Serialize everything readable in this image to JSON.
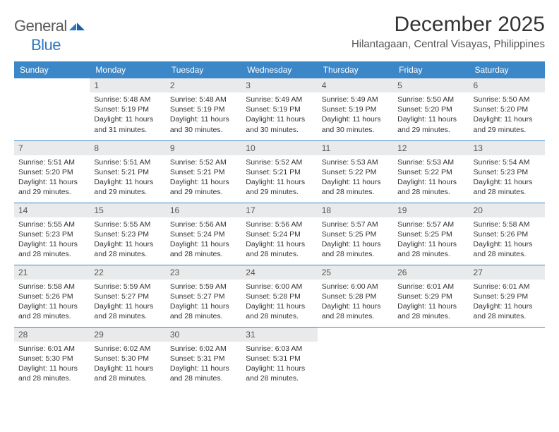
{
  "logo": {
    "general": "General",
    "blue": "Blue"
  },
  "header": {
    "month_title": "December 2025",
    "location": "Hilantagaan, Central Visayas, Philippines"
  },
  "colors": {
    "header_bg": "#3b87c8",
    "header_text": "#ffffff",
    "daynum_bg": "#e9eaeb",
    "row_border": "#3b87c8",
    "logo_gray": "#5a5a5a",
    "logo_blue": "#2f78c3"
  },
  "weekdays": [
    "Sunday",
    "Monday",
    "Tuesday",
    "Wednesday",
    "Thursday",
    "Friday",
    "Saturday"
  ],
  "weeks": [
    [
      {
        "n": "",
        "sr": "",
        "ss": "",
        "dl": ""
      },
      {
        "n": "1",
        "sr": "Sunrise: 5:48 AM",
        "ss": "Sunset: 5:19 PM",
        "dl": "Daylight: 11 hours and 31 minutes."
      },
      {
        "n": "2",
        "sr": "Sunrise: 5:48 AM",
        "ss": "Sunset: 5:19 PM",
        "dl": "Daylight: 11 hours and 30 minutes."
      },
      {
        "n": "3",
        "sr": "Sunrise: 5:49 AM",
        "ss": "Sunset: 5:19 PM",
        "dl": "Daylight: 11 hours and 30 minutes."
      },
      {
        "n": "4",
        "sr": "Sunrise: 5:49 AM",
        "ss": "Sunset: 5:19 PM",
        "dl": "Daylight: 11 hours and 30 minutes."
      },
      {
        "n": "5",
        "sr": "Sunrise: 5:50 AM",
        "ss": "Sunset: 5:20 PM",
        "dl": "Daylight: 11 hours and 29 minutes."
      },
      {
        "n": "6",
        "sr": "Sunrise: 5:50 AM",
        "ss": "Sunset: 5:20 PM",
        "dl": "Daylight: 11 hours and 29 minutes."
      }
    ],
    [
      {
        "n": "7",
        "sr": "Sunrise: 5:51 AM",
        "ss": "Sunset: 5:20 PM",
        "dl": "Daylight: 11 hours and 29 minutes."
      },
      {
        "n": "8",
        "sr": "Sunrise: 5:51 AM",
        "ss": "Sunset: 5:21 PM",
        "dl": "Daylight: 11 hours and 29 minutes."
      },
      {
        "n": "9",
        "sr": "Sunrise: 5:52 AM",
        "ss": "Sunset: 5:21 PM",
        "dl": "Daylight: 11 hours and 29 minutes."
      },
      {
        "n": "10",
        "sr": "Sunrise: 5:52 AM",
        "ss": "Sunset: 5:21 PM",
        "dl": "Daylight: 11 hours and 29 minutes."
      },
      {
        "n": "11",
        "sr": "Sunrise: 5:53 AM",
        "ss": "Sunset: 5:22 PM",
        "dl": "Daylight: 11 hours and 28 minutes."
      },
      {
        "n": "12",
        "sr": "Sunrise: 5:53 AM",
        "ss": "Sunset: 5:22 PM",
        "dl": "Daylight: 11 hours and 28 minutes."
      },
      {
        "n": "13",
        "sr": "Sunrise: 5:54 AM",
        "ss": "Sunset: 5:23 PM",
        "dl": "Daylight: 11 hours and 28 minutes."
      }
    ],
    [
      {
        "n": "14",
        "sr": "Sunrise: 5:55 AM",
        "ss": "Sunset: 5:23 PM",
        "dl": "Daylight: 11 hours and 28 minutes."
      },
      {
        "n": "15",
        "sr": "Sunrise: 5:55 AM",
        "ss": "Sunset: 5:23 PM",
        "dl": "Daylight: 11 hours and 28 minutes."
      },
      {
        "n": "16",
        "sr": "Sunrise: 5:56 AM",
        "ss": "Sunset: 5:24 PM",
        "dl": "Daylight: 11 hours and 28 minutes."
      },
      {
        "n": "17",
        "sr": "Sunrise: 5:56 AM",
        "ss": "Sunset: 5:24 PM",
        "dl": "Daylight: 11 hours and 28 minutes."
      },
      {
        "n": "18",
        "sr": "Sunrise: 5:57 AM",
        "ss": "Sunset: 5:25 PM",
        "dl": "Daylight: 11 hours and 28 minutes."
      },
      {
        "n": "19",
        "sr": "Sunrise: 5:57 AM",
        "ss": "Sunset: 5:25 PM",
        "dl": "Daylight: 11 hours and 28 minutes."
      },
      {
        "n": "20",
        "sr": "Sunrise: 5:58 AM",
        "ss": "Sunset: 5:26 PM",
        "dl": "Daylight: 11 hours and 28 minutes."
      }
    ],
    [
      {
        "n": "21",
        "sr": "Sunrise: 5:58 AM",
        "ss": "Sunset: 5:26 PM",
        "dl": "Daylight: 11 hours and 28 minutes."
      },
      {
        "n": "22",
        "sr": "Sunrise: 5:59 AM",
        "ss": "Sunset: 5:27 PM",
        "dl": "Daylight: 11 hours and 28 minutes."
      },
      {
        "n": "23",
        "sr": "Sunrise: 5:59 AM",
        "ss": "Sunset: 5:27 PM",
        "dl": "Daylight: 11 hours and 28 minutes."
      },
      {
        "n": "24",
        "sr": "Sunrise: 6:00 AM",
        "ss": "Sunset: 5:28 PM",
        "dl": "Daylight: 11 hours and 28 minutes."
      },
      {
        "n": "25",
        "sr": "Sunrise: 6:00 AM",
        "ss": "Sunset: 5:28 PM",
        "dl": "Daylight: 11 hours and 28 minutes."
      },
      {
        "n": "26",
        "sr": "Sunrise: 6:01 AM",
        "ss": "Sunset: 5:29 PM",
        "dl": "Daylight: 11 hours and 28 minutes."
      },
      {
        "n": "27",
        "sr": "Sunrise: 6:01 AM",
        "ss": "Sunset: 5:29 PM",
        "dl": "Daylight: 11 hours and 28 minutes."
      }
    ],
    [
      {
        "n": "28",
        "sr": "Sunrise: 6:01 AM",
        "ss": "Sunset: 5:30 PM",
        "dl": "Daylight: 11 hours and 28 minutes."
      },
      {
        "n": "29",
        "sr": "Sunrise: 6:02 AM",
        "ss": "Sunset: 5:30 PM",
        "dl": "Daylight: 11 hours and 28 minutes."
      },
      {
        "n": "30",
        "sr": "Sunrise: 6:02 AM",
        "ss": "Sunset: 5:31 PM",
        "dl": "Daylight: 11 hours and 28 minutes."
      },
      {
        "n": "31",
        "sr": "Sunrise: 6:03 AM",
        "ss": "Sunset: 5:31 PM",
        "dl": "Daylight: 11 hours and 28 minutes."
      },
      {
        "n": "",
        "sr": "",
        "ss": "",
        "dl": ""
      },
      {
        "n": "",
        "sr": "",
        "ss": "",
        "dl": ""
      },
      {
        "n": "",
        "sr": "",
        "ss": "",
        "dl": ""
      }
    ]
  ]
}
